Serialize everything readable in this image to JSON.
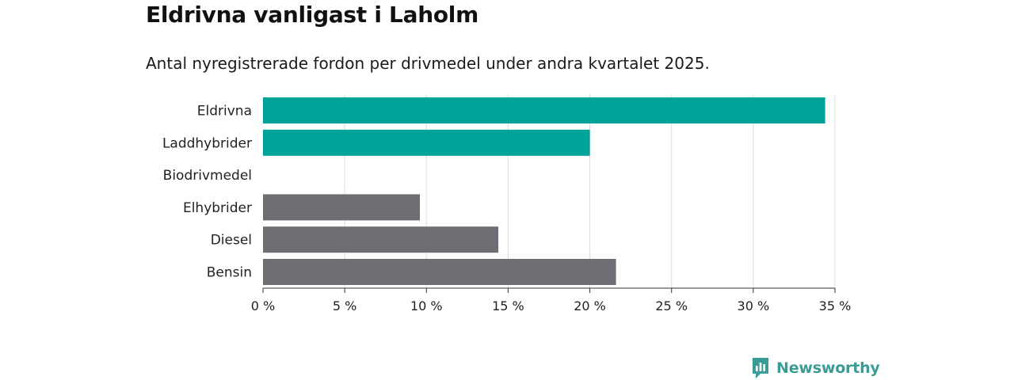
{
  "header": {
    "title": "Eldrivna vanligast i Laholm",
    "subtitle": "Antal nyregistrerade fordon per drivmedel under andra kvartalet 2025."
  },
  "brand": {
    "name": "Newsworthy",
    "icon": "newsworthy-logo-icon",
    "color": "#3a9c96"
  },
  "colors": {
    "highlight": "#00a39a",
    "default": "#6e6d73",
    "grid": "#dcdcdc",
    "axis": "#333333"
  },
  "chart_data": {
    "type": "bar",
    "orientation": "horizontal",
    "categories": [
      "Eldrivna",
      "Laddhybrider",
      "Biodrivmedel",
      "Elhybrider",
      "Diesel",
      "Bensin"
    ],
    "values": [
      34.4,
      20.0,
      0,
      9.6,
      14.4,
      21.6
    ],
    "highlighted": [
      true,
      true,
      false,
      false,
      false,
      false
    ],
    "xlim": [
      0,
      35
    ],
    "xticks": [
      0,
      5,
      10,
      15,
      20,
      25,
      30,
      35
    ],
    "tick_suffix": " %",
    "grid": "vertical"
  }
}
